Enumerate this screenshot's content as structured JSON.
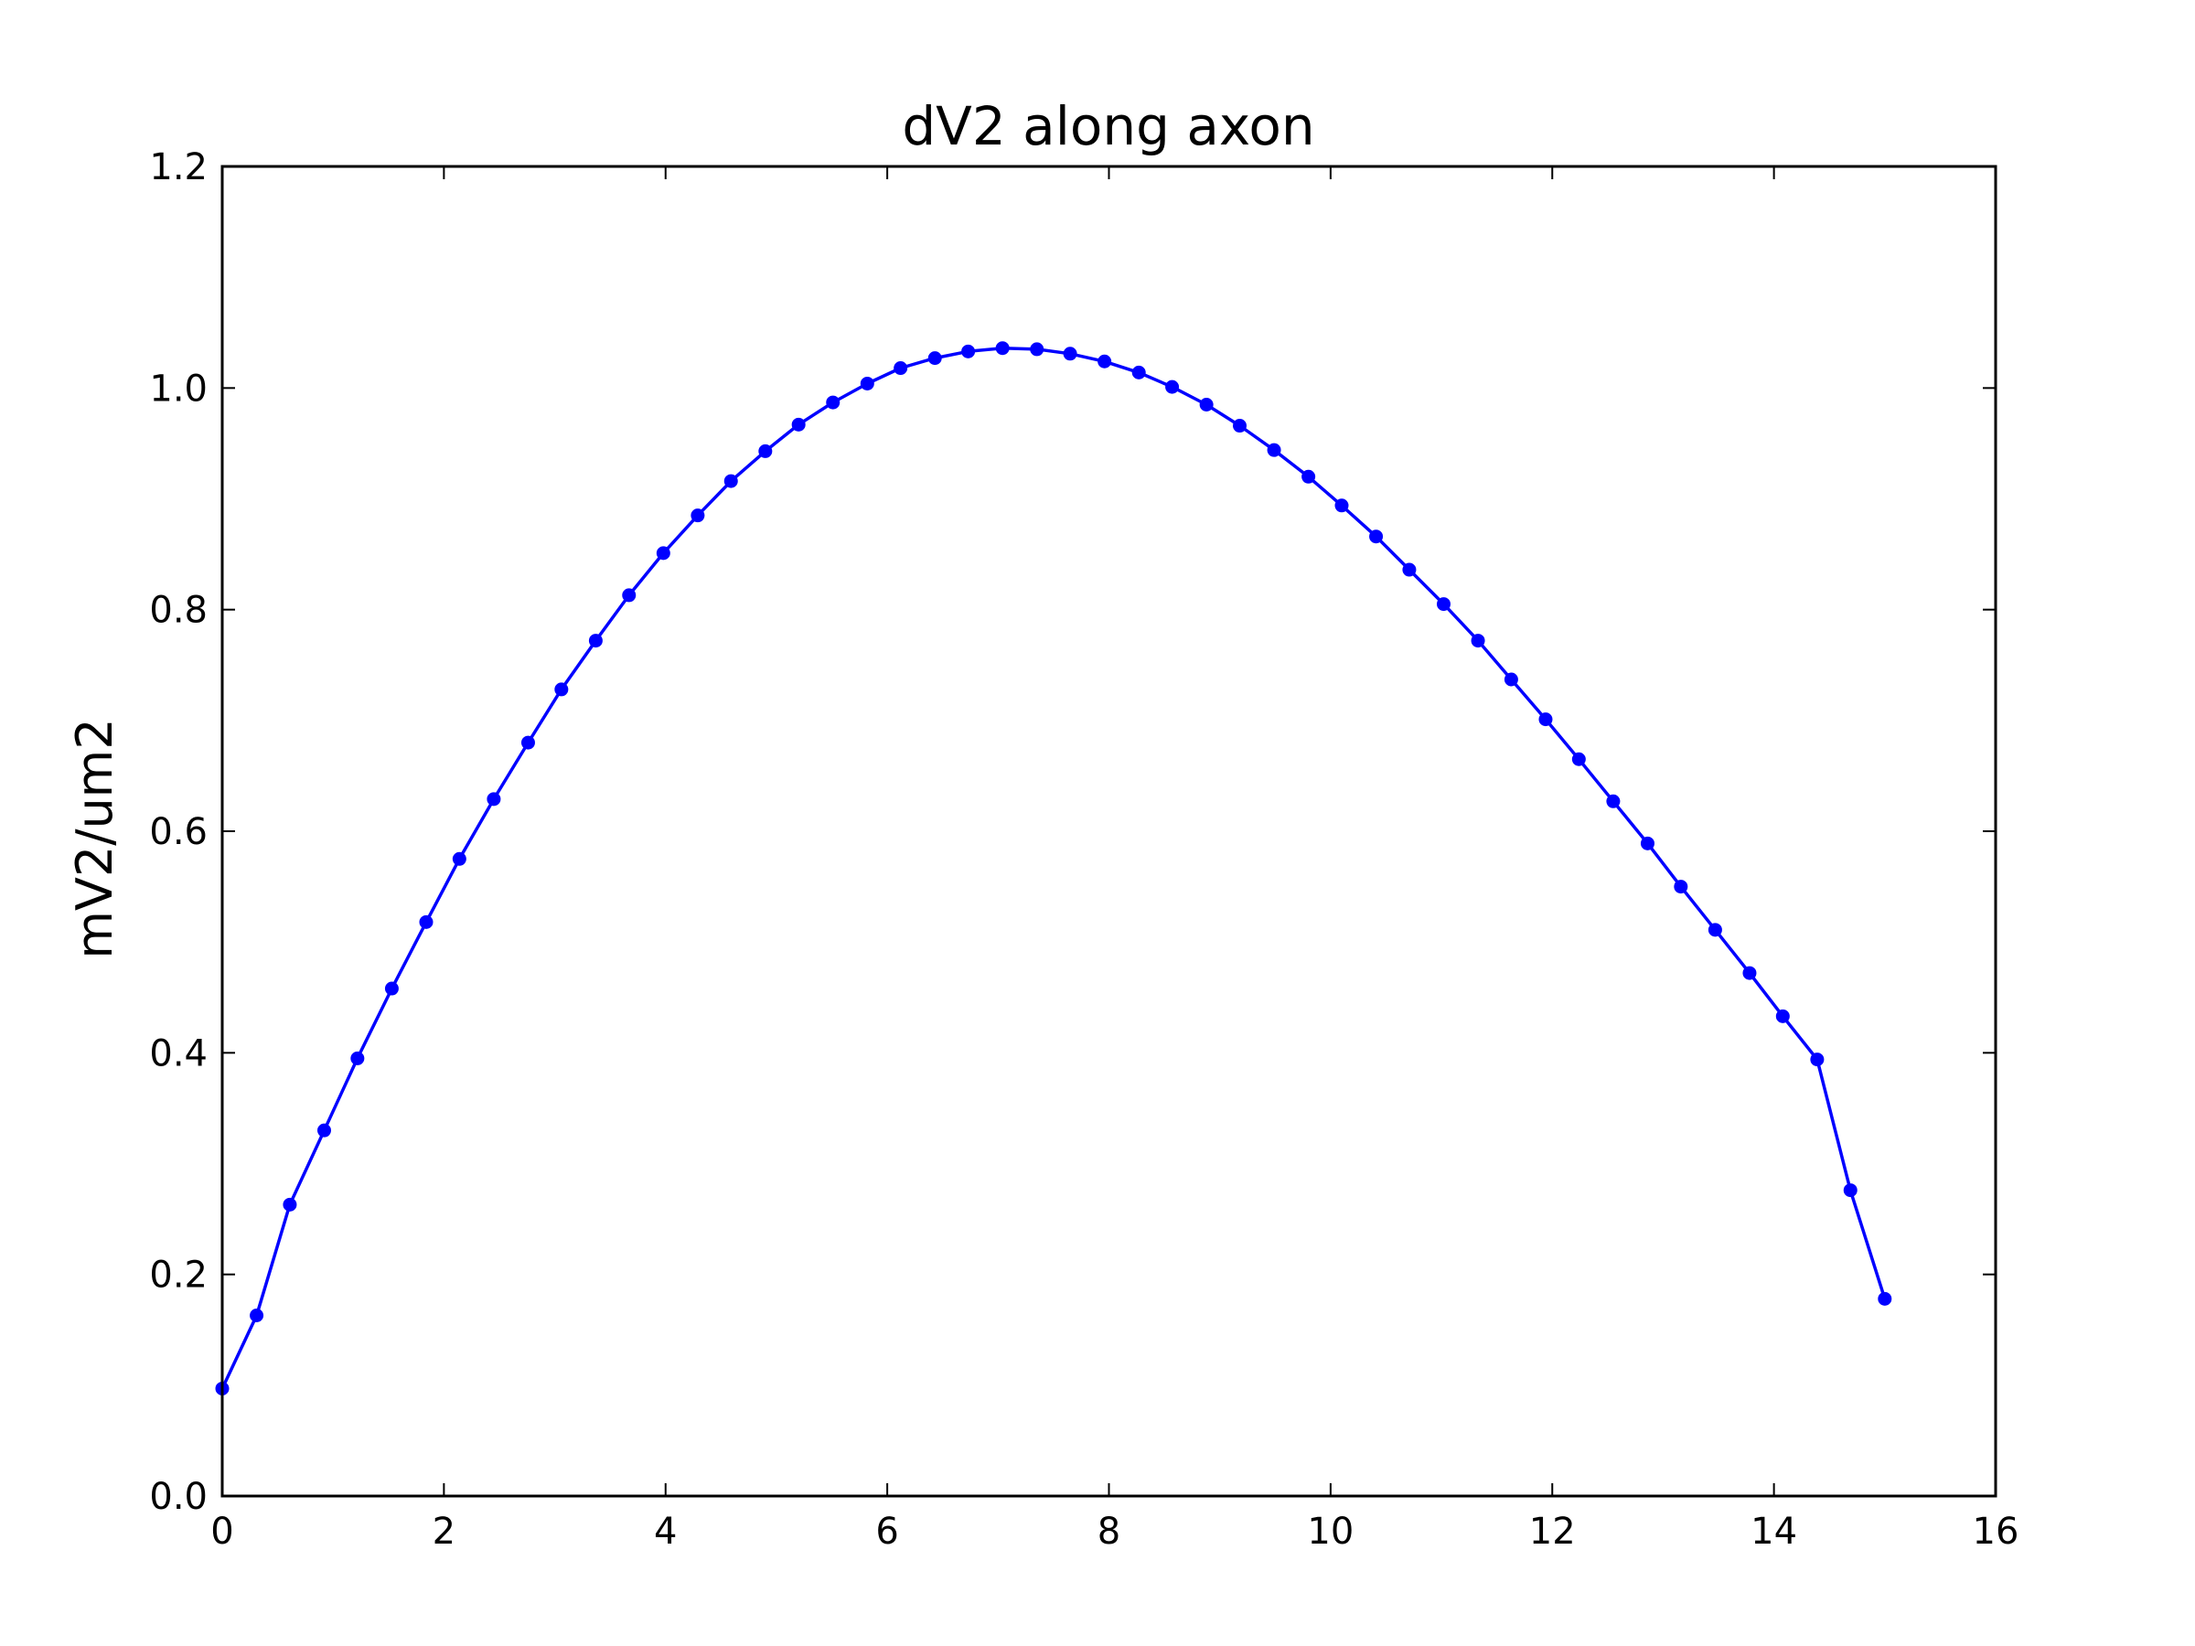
{
  "chart_data": {
    "type": "line",
    "title": "dV2 along axon",
    "xlabel": "",
    "ylabel": "mV2/um2",
    "xlim": [
      0,
      16
    ],
    "ylim": [
      0.0,
      1.2
    ],
    "xticks": [
      "0",
      "2",
      "4",
      "6",
      "8",
      "10",
      "12",
      "14",
      "16"
    ],
    "yticks": [
      "0.0",
      "0.2",
      "0.4",
      "0.6",
      "0.8",
      "1.0",
      "1.2"
    ],
    "grid": false,
    "color": "#0000ff",
    "series": [
      {
        "x": [
          0.0,
          0.31,
          0.61,
          0.92,
          1.22,
          1.53,
          1.84,
          2.14,
          2.45,
          2.76,
          3.06,
          3.37,
          3.67,
          3.98,
          4.29,
          4.59,
          4.9,
          5.2,
          5.51,
          5.82,
          6.12,
          6.43,
          6.73,
          7.04,
          7.35,
          7.65,
          7.96,
          8.27,
          8.57,
          8.88,
          9.18,
          9.49,
          9.8,
          10.1,
          10.41,
          10.71,
          11.02,
          11.33,
          11.63,
          11.94,
          12.24,
          12.55,
          12.86,
          13.16,
          13.47,
          13.78,
          14.08,
          14.39,
          14.69,
          15.0
        ],
        "y": [
          0.097,
          0.163,
          0.263,
          0.33,
          0.395,
          0.458,
          0.518,
          0.575,
          0.629,
          0.68,
          0.728,
          0.772,
          0.813,
          0.851,
          0.885,
          0.916,
          0.943,
          0.967,
          0.987,
          1.004,
          1.018,
          1.027,
          1.033,
          1.036,
          1.035,
          1.031,
          1.024,
          1.014,
          1.001,
          0.985,
          0.966,
          0.944,
          0.92,
          0.894,
          0.866,
          0.836,
          0.805,
          0.772,
          0.737,
          0.701,
          0.665,
          0.627,
          0.589,
          0.55,
          0.511,
          0.472,
          0.433,
          0.394,
          0.276,
          0.178
        ]
      }
    ]
  }
}
